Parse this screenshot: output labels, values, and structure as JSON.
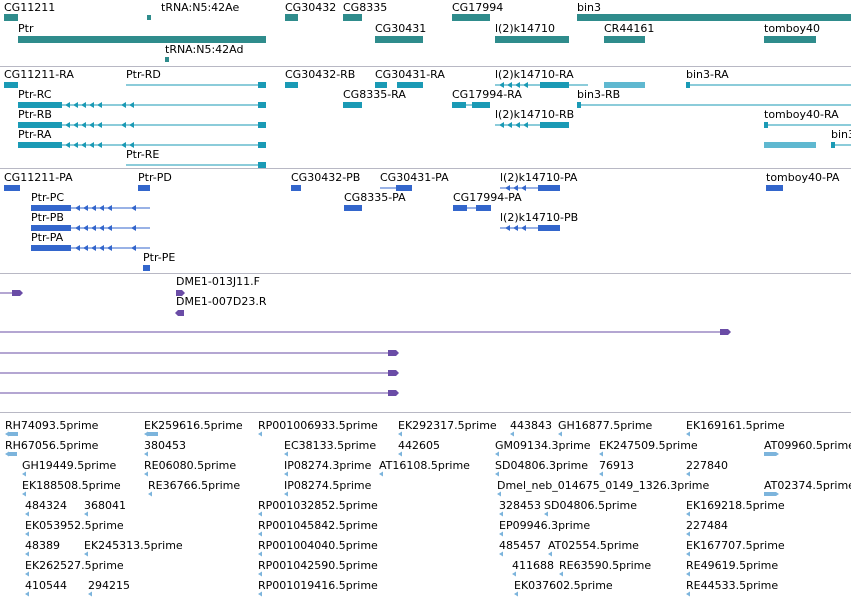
{
  "colors": {
    "gene": "#2f8c8c",
    "transcript": "#1a9ab5",
    "protein": "#3366cc",
    "clone": "#6a4ca6",
    "est": "#7cb4dc",
    "separator": "#b8b8c4"
  },
  "genes": {
    "labels": [
      "CG11211",
      "tRNA:N5:42Ae",
      "CG30432",
      "CG8335",
      "CG17994",
      "bin3",
      "Ptr",
      "CG30431",
      "l(2)k14710",
      "CR44161",
      "tomboy40",
      "tRNA:N5:42Ad"
    ]
  },
  "transcripts": {
    "labels": [
      "CG11211-RA",
      "Ptr-RD",
      "CG30432-RB",
      "CG30431-RA",
      "l(2)k14710-RA",
      "bin3-RA",
      "Ptr-RC",
      "CG8335-RA",
      "CG17994-RA",
      "bin3-RB",
      "Ptr-RB",
      "l(2)k14710-RB",
      "tomboy40-RA",
      "bin3",
      "Ptr-RA",
      "Ptr-RE"
    ]
  },
  "proteins": {
    "labels": [
      "CG11211-PA",
      "Ptr-PD",
      "CG30432-PB",
      "CG30431-PA",
      "l(2)k14710-PA",
      "tomboy40-PA",
      "Ptr-PC",
      "CG8335-PA",
      "CG17994-PA",
      "Ptr-PB",
      "l(2)k14710-PB",
      "Ptr-PA",
      "Ptr-PE"
    ]
  },
  "clones": {
    "labels": [
      "DME1-013J11.F",
      "DME1-007D23.R"
    ]
  },
  "ests": {
    "labels": [
      "RH74093.5prime",
      "EK259616.5prime",
      "RP001006933.5prime",
      "EK292317.5prime",
      "443843",
      "GH16877.5prime",
      "EK169161.5prime",
      "RH67056.5prime",
      "380453",
      "EC38133.5prime",
      "442605",
      "GM09134.3prime",
      "EK247509.5prime",
      "AT09960.5prime",
      "GH19449.5prime",
      "RE06080.5prime",
      "IP08274.3prime",
      "AT16108.5prime",
      "SD04806.3prime",
      "76913",
      "227840",
      "EK188508.5prime",
      "RE36766.5prime",
      "IP08274.5prime",
      "Dmel_neb_014675_0149_1326.3prime",
      "AT02374.5prime",
      "484324",
      "368041",
      "RP001032852.5prime",
      "328453",
      "SD04806.5prime",
      "EK169218.5prime",
      "EK053952.5prime",
      "RP001045842.5prime",
      "EP09946.3prime",
      "227484",
      "48389",
      "EK245313.5prime",
      "RP001004040.5prime",
      "485457",
      "AT02554.5prime",
      "EK167707.5prime",
      "EK262527.5prime",
      "RP001042590.5prime",
      "411688",
      "RE63590.5prime",
      "RE49619.5prime",
      "410544",
      "294215",
      "RP001019416.5prime",
      "EK037602.5prime",
      "RE44533.5prime"
    ]
  }
}
